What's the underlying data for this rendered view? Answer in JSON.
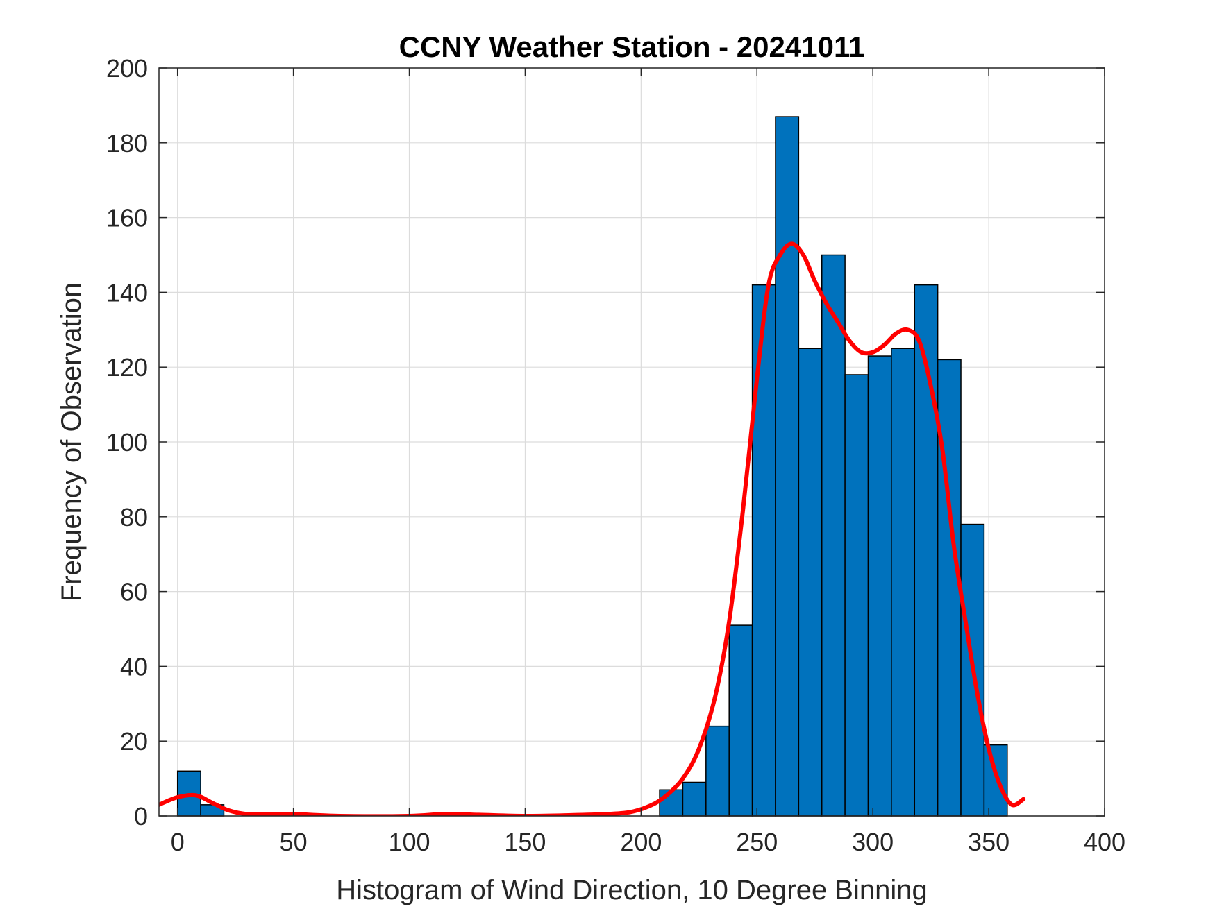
{
  "chart_data": {
    "type": "bar",
    "title": "CCNY Weather Station - 20241011",
    "xlabel": "Histogram of Wind Direction, 10 Degree Binning",
    "ylabel": "Frequency of Observation",
    "xlim": [
      -8,
      400
    ],
    "ylim": [
      0,
      200
    ],
    "xticks": [
      0,
      50,
      100,
      150,
      200,
      250,
      300,
      350,
      400
    ],
    "yticks": [
      0,
      20,
      40,
      60,
      80,
      100,
      120,
      140,
      160,
      180,
      200
    ],
    "grid": true,
    "bin_width": 10,
    "bar_color": "#0072BD",
    "line_color": "#FF0000",
    "bins": [
      {
        "start": 0,
        "value": 12
      },
      {
        "start": 10,
        "value": 3
      },
      {
        "start": 20,
        "value": 0
      },
      {
        "start": 30,
        "value": 0
      },
      {
        "start": 40,
        "value": 0
      },
      {
        "start": 50,
        "value": 0
      },
      {
        "start": 60,
        "value": 0
      },
      {
        "start": 70,
        "value": 0
      },
      {
        "start": 80,
        "value": 0
      },
      {
        "start": 90,
        "value": 0
      },
      {
        "start": 100,
        "value": 0
      },
      {
        "start": 110,
        "value": 0
      },
      {
        "start": 120,
        "value": 0
      },
      {
        "start": 130,
        "value": 0
      },
      {
        "start": 140,
        "value": 0
      },
      {
        "start": 150,
        "value": 0
      },
      {
        "start": 160,
        "value": 0
      },
      {
        "start": 170,
        "value": 0
      },
      {
        "start": 180,
        "value": 0
      },
      {
        "start": 190,
        "value": 0
      },
      {
        "start": 200,
        "value": 0
      },
      {
        "start": 208,
        "value": 7
      },
      {
        "start": 218,
        "value": 9
      },
      {
        "start": 228,
        "value": 24
      },
      {
        "start": 238,
        "value": 51
      },
      {
        "start": 248,
        "value": 142
      },
      {
        "start": 258,
        "value": 187
      },
      {
        "start": 268,
        "value": 125
      },
      {
        "start": 278,
        "value": 150
      },
      {
        "start": 288,
        "value": 118
      },
      {
        "start": 298,
        "value": 123
      },
      {
        "start": 308,
        "value": 125
      },
      {
        "start": 318,
        "value": 142
      },
      {
        "start": 328,
        "value": 122
      },
      {
        "start": 338,
        "value": 78
      },
      {
        "start": 348,
        "value": 19
      }
    ],
    "density_curve": {
      "x": [
        -8,
        0,
        8,
        15,
        22,
        30,
        40,
        50,
        70,
        100,
        115,
        130,
        150,
        170,
        185,
        195,
        203,
        210,
        218,
        225,
        232,
        238,
        244,
        250,
        255,
        260,
        265,
        270,
        275,
        280,
        285,
        290,
        295,
        300,
        305,
        310,
        315,
        320,
        325,
        330,
        335,
        340,
        345,
        350,
        355,
        360,
        365
      ],
      "y": [
        3,
        5,
        5.5,
        3.5,
        1.5,
        0.5,
        0.5,
        0.5,
        0,
        0,
        0.5,
        0.3,
        0,
        0.2,
        0.5,
        1,
        2.5,
        5,
        10,
        18,
        32,
        52,
        82,
        117,
        142,
        150,
        153,
        150,
        143,
        137,
        132,
        127,
        124,
        124,
        126,
        129,
        130,
        127,
        115,
        98,
        72,
        52,
        33,
        18,
        8,
        3,
        0
      ],
      "y_visible_tail": 4.5
    }
  }
}
